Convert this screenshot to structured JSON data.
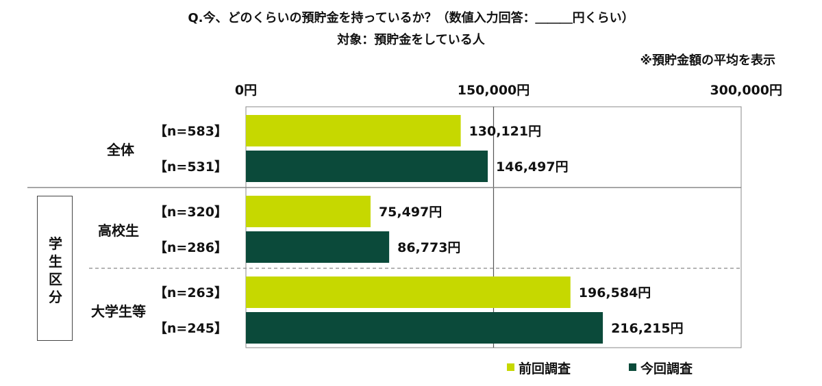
{
  "header": {
    "title": "Q.今、どのくらいの預貯金を持っているか？（数値入力回答：＿＿＿円くらい）",
    "subtitle": "対象：預貯金をしている人",
    "note": "※預貯金額の平均を表示"
  },
  "side_group": {
    "label": "学生区分"
  },
  "colors": {
    "prev": "#c6d800",
    "curr": "#0b4a3a"
  },
  "chart_data": {
    "type": "bar",
    "orientation": "horizontal",
    "title": "Q.今、どのくらいの預貯金を持っているか？（数値入力回答：＿＿＿円くらい）",
    "subtitle": "対象：預貯金をしている人",
    "xlim": [
      0,
      300000
    ],
    "ticks": [
      {
        "value": 0,
        "label": "0円"
      },
      {
        "value": 150000,
        "label": "150,000円"
      },
      {
        "value": 300000,
        "label": "300,000円"
      }
    ],
    "legend": [
      {
        "name": "前回調査",
        "color": "#c6d800"
      },
      {
        "name": "今回調査",
        "color": "#0b4a3a"
      }
    ],
    "legend_position": "bottom",
    "groups": [
      {
        "label": "全体",
        "bars": [
          {
            "series": "前回調査",
            "n": "【n=583】",
            "value": 130121,
            "value_label": "130,121円"
          },
          {
            "series": "今回調査",
            "n": "【n=531】",
            "value": 146497,
            "value_label": "146,497円"
          }
        ]
      },
      {
        "label": "高校生",
        "bars": [
          {
            "series": "前回調査",
            "n": "【n=320】",
            "value": 75497,
            "value_label": "75,497円"
          },
          {
            "series": "今回調査",
            "n": "【n=286】",
            "value": 86773,
            "value_label": "86,773円"
          }
        ]
      },
      {
        "label": "大学生等",
        "bars": [
          {
            "series": "前回調査",
            "n": "【n=263】",
            "value": 196584,
            "value_label": "196,584円"
          },
          {
            "series": "今回調査",
            "n": "【n=245】",
            "value": 216215,
            "value_label": "216,215円"
          }
        ]
      }
    ]
  }
}
